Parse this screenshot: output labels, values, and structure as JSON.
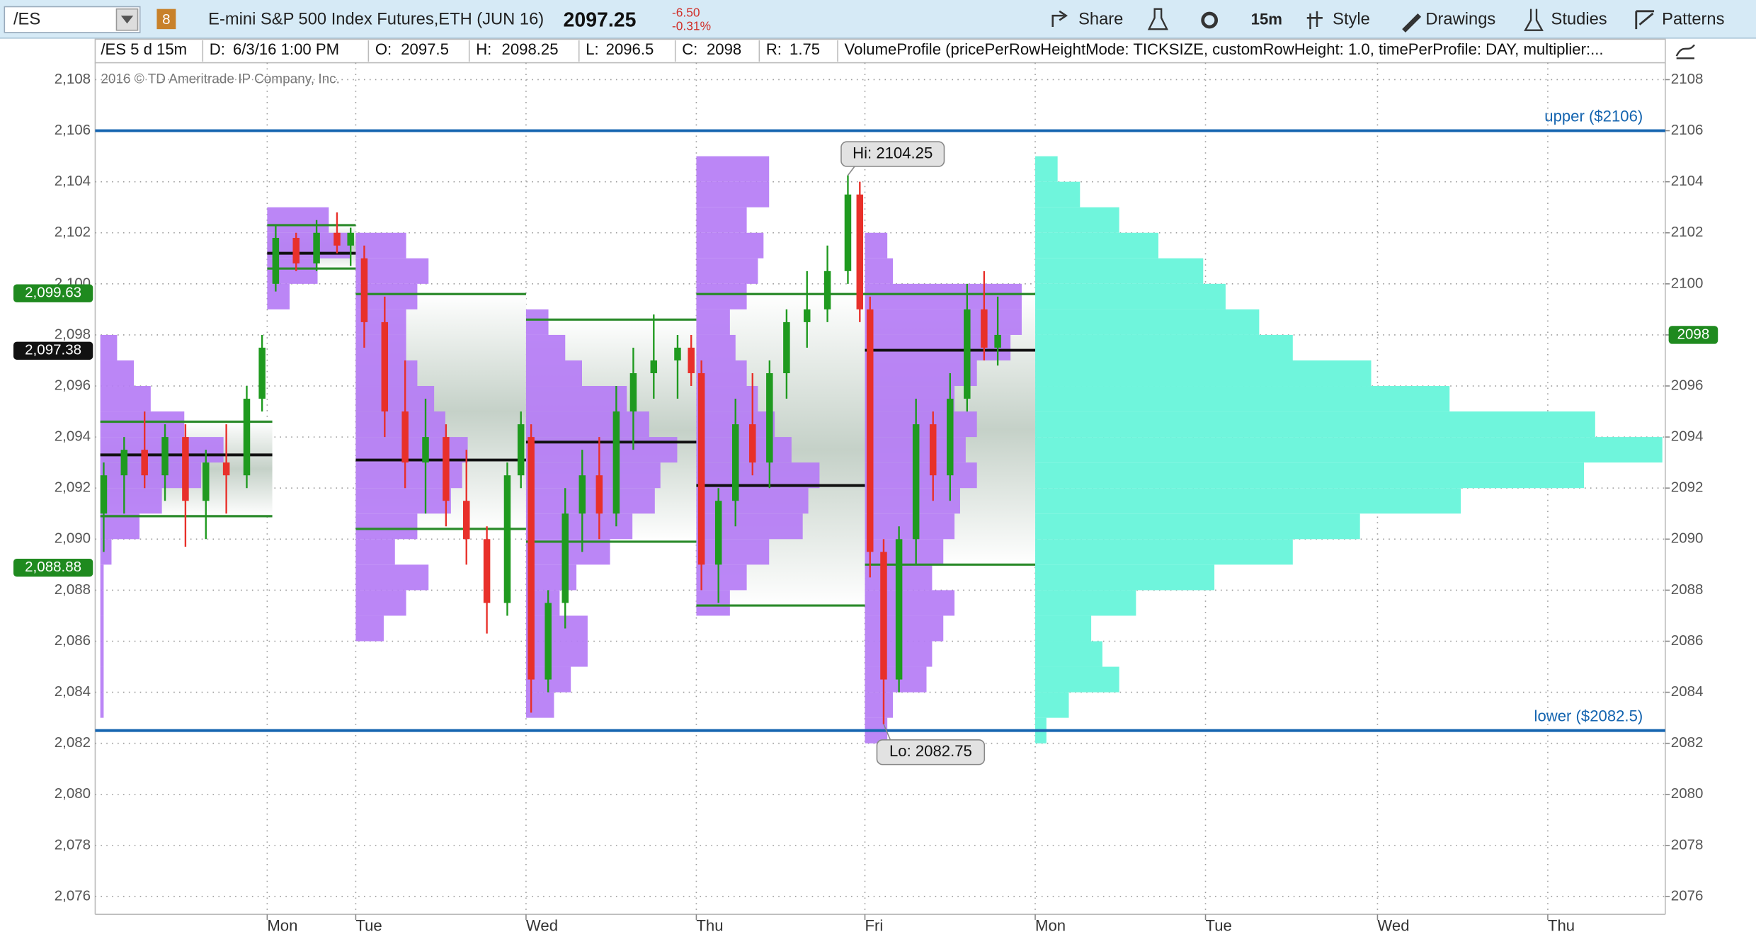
{
  "toolbar": {
    "symbol": "/ES",
    "link_group": "8",
    "description": "E-mini S&P 500 Index Futures,ETH (JUN 16)",
    "last": 2097.25,
    "change": "-6.50",
    "change_pct": "-0.31%",
    "buttons": [
      "Share",
      "15m",
      "Style",
      "Drawings",
      "Studies",
      "Patterns"
    ]
  },
  "header": {
    "chart_id": "/ES 5 d 15m",
    "fields": [
      {
        "label": "D:",
        "value": "6/3/16 1:00 PM"
      },
      {
        "label": "O:",
        "value": 2097.5
      },
      {
        "label": "H:",
        "value": 2098.25
      },
      {
        "label": "L:",
        "value": 2096.5
      },
      {
        "label": "C:",
        "value": 2098
      },
      {
        "label": "R:",
        "value": 1.75
      }
    ],
    "study": "VolumeProfile (pricePerRowHeightMode: TICKSIZE, customRowHeight: 1.0, timePerProfile: DAY, multiplier:..."
  },
  "copyright": "2016 © TD Ameritrade IP Company, Inc.",
  "chart_data": {
    "type": "candlestick",
    "xlim": [
      0,
      9.22
    ],
    "ylim": [
      2075.3,
      2109.54
    ],
    "xticks": [
      {
        "value": 1.01,
        "label": "Mon"
      },
      {
        "value": 1.53,
        "label": "Tue"
      },
      {
        "value": 2.53,
        "label": "Wed"
      },
      {
        "value": 3.53,
        "label": "Thu"
      },
      {
        "value": 4.52,
        "label": "Fri"
      },
      {
        "value": 5.52,
        "label": "Mon"
      },
      {
        "value": 6.52,
        "label": "Tue"
      },
      {
        "value": 7.53,
        "label": "Wed"
      },
      {
        "value": 8.53,
        "label": "Thu"
      }
    ],
    "yticks": [
      {
        "value": 2076,
        "label": "2,076"
      },
      {
        "value": 2078,
        "label": "2,078"
      },
      {
        "value": 2080,
        "label": "2,080"
      },
      {
        "value": 2082,
        "label": "2,082"
      },
      {
        "value": 2084,
        "label": "2,084"
      },
      {
        "value": 2086,
        "label": "2,086"
      },
      {
        "value": 2088,
        "label": "2,088"
      },
      {
        "value": 2090,
        "label": "2,090"
      },
      {
        "value": 2092,
        "label": "2,092"
      },
      {
        "value": 2094,
        "label": "2,094"
      },
      {
        "value": 2096,
        "label": "2,096"
      },
      {
        "value": 2098,
        "label": "2,098"
      },
      {
        "value": 2100,
        "label": "2,100"
      },
      {
        "value": 2102,
        "label": "2,102"
      },
      {
        "value": 2104,
        "label": "2,104"
      },
      {
        "value": 2106,
        "label": "2,106"
      },
      {
        "value": 2108,
        "label": "2,108"
      }
    ],
    "y2ticks": [
      2076,
      2078,
      2080,
      2082,
      2084,
      2086,
      2088,
      2090,
      2092,
      2094,
      2096,
      2098,
      2100,
      2102,
      2104,
      2106,
      2108
    ],
    "grid": true,
    "up_color": "#1f9a1f",
    "down_color": "#e8302a",
    "candles": [
      {
        "x": 0.05,
        "open": 2091,
        "high": 2093,
        "low": 2089.5,
        "close": 2092.5
      },
      {
        "x": 0.17,
        "open": 2092.5,
        "high": 2094,
        "low": 2091,
        "close": 2093.5
      },
      {
        "x": 0.29,
        "open": 2093.5,
        "high": 2095,
        "low": 2092,
        "close": 2092.5
      },
      {
        "x": 0.41,
        "open": 2092.5,
        "high": 2094.5,
        "low": 2091.5,
        "close": 2094
      },
      {
        "x": 0.53,
        "open": 2094,
        "high": 2094.5,
        "low": 2089.7,
        "close": 2091.5
      },
      {
        "x": 0.65,
        "open": 2091.5,
        "high": 2093.5,
        "low": 2090,
        "close": 2093
      },
      {
        "x": 0.77,
        "open": 2093,
        "high": 2094.5,
        "low": 2091,
        "close": 2092.5
      },
      {
        "x": 0.89,
        "open": 2092.5,
        "high": 2096,
        "low": 2092,
        "close": 2095.5
      },
      {
        "x": 0.98,
        "open": 2095.5,
        "high": 2098,
        "low": 2095,
        "close": 2097.5
      },
      {
        "x": 1.06,
        "open": 2100,
        "high": 2102.3,
        "low": 2099.7,
        "close": 2101.8
      },
      {
        "x": 1.18,
        "open": 2101.8,
        "high": 2102,
        "low": 2100.5,
        "close": 2100.8
      },
      {
        "x": 1.3,
        "open": 2100.8,
        "high": 2102.5,
        "low": 2100.5,
        "close": 2102
      },
      {
        "x": 1.42,
        "open": 2102,
        "high": 2102.8,
        "low": 2101.2,
        "close": 2101.5
      },
      {
        "x": 1.5,
        "open": 2101.5,
        "high": 2102.2,
        "low": 2100.7,
        "close": 2102
      },
      {
        "x": 1.58,
        "open": 2101,
        "high": 2101.5,
        "low": 2097.5,
        "close": 2098.5
      },
      {
        "x": 1.7,
        "open": 2098.5,
        "high": 2099.5,
        "low": 2094,
        "close": 2095
      },
      {
        "x": 1.82,
        "open": 2095,
        "high": 2097,
        "low": 2092,
        "close": 2093
      },
      {
        "x": 1.94,
        "open": 2093,
        "high": 2095.5,
        "low": 2091,
        "close": 2094
      },
      {
        "x": 2.06,
        "open": 2094,
        "high": 2094.5,
        "low": 2090.5,
        "close": 2091.5
      },
      {
        "x": 2.18,
        "open": 2091.5,
        "high": 2093.5,
        "low": 2089,
        "close": 2090
      },
      {
        "x": 2.3,
        "open": 2090,
        "high": 2090.5,
        "low": 2086.3,
        "close": 2087.5
      },
      {
        "x": 2.42,
        "open": 2087.5,
        "high": 2093,
        "low": 2087,
        "close": 2092.5
      },
      {
        "x": 2.5,
        "open": 2092.5,
        "high": 2095,
        "low": 2092,
        "close": 2094.5
      },
      {
        "x": 2.56,
        "open": 2094,
        "high": 2094.5,
        "low": 2083.2,
        "close": 2084.5
      },
      {
        "x": 2.66,
        "open": 2084.5,
        "high": 2088,
        "low": 2084,
        "close": 2087.5
      },
      {
        "x": 2.76,
        "open": 2087.5,
        "high": 2092,
        "low": 2086.5,
        "close": 2091
      },
      {
        "x": 2.86,
        "open": 2091,
        "high": 2093.5,
        "low": 2089.5,
        "close": 2092.5
      },
      {
        "x": 2.96,
        "open": 2092.5,
        "high": 2094,
        "low": 2090,
        "close": 2091
      },
      {
        "x": 3.06,
        "open": 2091,
        "high": 2096,
        "low": 2090.5,
        "close": 2095
      },
      {
        "x": 3.16,
        "open": 2095,
        "high": 2097.5,
        "low": 2093.5,
        "close": 2096.5
      },
      {
        "x": 3.28,
        "open": 2096.5,
        "high": 2098.8,
        "low": 2095.5,
        "close": 2097
      },
      {
        "x": 3.42,
        "open": 2097,
        "high": 2098,
        "low": 2095.5,
        "close": 2097.5
      },
      {
        "x": 3.5,
        "open": 2097.5,
        "high": 2098,
        "low": 2096,
        "close": 2096.5
      },
      {
        "x": 3.56,
        "open": 2096.5,
        "high": 2097,
        "low": 2088,
        "close": 2089
      },
      {
        "x": 3.66,
        "open": 2089,
        "high": 2092,
        "low": 2087.5,
        "close": 2091.5
      },
      {
        "x": 3.76,
        "open": 2091.5,
        "high": 2095.5,
        "low": 2090.5,
        "close": 2094.5
      },
      {
        "x": 3.86,
        "open": 2094.5,
        "high": 2096.5,
        "low": 2092.5,
        "close": 2093
      },
      {
        "x": 3.96,
        "open": 2093,
        "high": 2097,
        "low": 2092,
        "close": 2096.5
      },
      {
        "x": 4.06,
        "open": 2096.5,
        "high": 2099,
        "low": 2095.5,
        "close": 2098.5
      },
      {
        "x": 4.18,
        "open": 2098.5,
        "high": 2100.5,
        "low": 2097.5,
        "close": 2099
      },
      {
        "x": 4.3,
        "open": 2099,
        "high": 2101.5,
        "low": 2098.5,
        "close": 2100.5
      },
      {
        "x": 4.42,
        "open": 2100.5,
        "high": 2104.25,
        "low": 2100,
        "close": 2103.5
      },
      {
        "x": 4.49,
        "open": 2103.5,
        "high": 2104,
        "low": 2098.5,
        "close": 2099
      },
      {
        "x": 4.55,
        "open": 2099,
        "high": 2099.5,
        "low": 2088.5,
        "close": 2089.5
      },
      {
        "x": 4.63,
        "open": 2089.5,
        "high": 2090,
        "low": 2082.75,
        "close": 2084.5
      },
      {
        "x": 4.72,
        "open": 2084.5,
        "high": 2090.5,
        "low": 2084,
        "close": 2090
      },
      {
        "x": 4.82,
        "open": 2090,
        "high": 2095.5,
        "low": 2089,
        "close": 2094.5
      },
      {
        "x": 4.92,
        "open": 2094.5,
        "high": 2095,
        "low": 2091.5,
        "close": 2092.5
      },
      {
        "x": 5.02,
        "open": 2092.5,
        "high": 2096.5,
        "low": 2091.5,
        "close": 2095.5
      },
      {
        "x": 5.12,
        "open": 2095.5,
        "high": 2100,
        "low": 2095,
        "close": 2099
      },
      {
        "x": 5.22,
        "open": 2099,
        "high": 2100.5,
        "low": 2097,
        "close": 2097.5
      },
      {
        "x": 5.3,
        "open": 2097.5,
        "high": 2099.5,
        "low": 2096.8,
        "close": 2098
      }
    ],
    "profile_color": "#b57cf5",
    "value_area_color": "#2a8a2a",
    "poc_color": "#111111",
    "profiles": [
      {
        "start": 0.03,
        "end": 1.04,
        "vah": 2094.6,
        "poc": 2093.3,
        "val": 2090.9,
        "prices": [
          2083,
          2084,
          2085,
          2086,
          2087,
          2088,
          2089,
          2090,
          2091,
          2092,
          2093,
          2094,
          2095,
          2096,
          2097
        ],
        "volumes": [
          3,
          3,
          3,
          3,
          3,
          3,
          10,
          35,
          55,
          90,
          110,
          75,
          45,
          30,
          15
        ]
      },
      {
        "start": 1.01,
        "end": 1.53,
        "vah": 2102.3,
        "poc": 2101.2,
        "val": 2100.6,
        "prices": [
          2099,
          2100,
          2101,
          2102
        ],
        "volumes": [
          20,
          45,
          75,
          55
        ]
      },
      {
        "start": 1.53,
        "end": 2.53,
        "vah": 2099.6,
        "poc": 2093.1,
        "val": 2090.4,
        "prices": [
          2086,
          2087,
          2088,
          2089,
          2090,
          2091,
          2092,
          2093,
          2094,
          2095,
          2096,
          2097,
          2098,
          2099,
          2100,
          2101
        ],
        "volumes": [
          25,
          45,
          65,
          35,
          55,
          85,
          95,
          100,
          80,
          70,
          55,
          45,
          45,
          55,
          65,
          45
        ]
      },
      {
        "start": 2.53,
        "end": 3.53,
        "vah": 2098.6,
        "poc": 2093.8,
        "val": 2089.9,
        "prices": [
          2083,
          2084,
          2085,
          2086,
          2087,
          2088,
          2089,
          2090,
          2091,
          2092,
          2093,
          2094,
          2095,
          2096,
          2097,
          2098
        ],
        "volumes": [
          25,
          40,
          55,
          55,
          30,
          45,
          75,
          95,
          115,
          120,
          135,
          110,
          90,
          50,
          35,
          20
        ]
      },
      {
        "start": 3.53,
        "end": 4.52,
        "vah": 2099.6,
        "poc": 2092.1,
        "val": 2087.4,
        "prices": [
          2087,
          2088,
          2089,
          2090,
          2091,
          2092,
          2093,
          2094,
          2095,
          2096,
          2097,
          2098,
          2099,
          2100,
          2101,
          2102,
          2103,
          2104
        ],
        "volumes": [
          30,
          45,
          65,
          95,
          100,
          110,
          85,
          70,
          55,
          45,
          35,
          30,
          45,
          55,
          60,
          45,
          65,
          65
        ]
      },
      {
        "start": 4.52,
        "end": 5.52,
        "vah": 2099.6,
        "poc": 2097.4,
        "val": 2089,
        "prices": [
          2082,
          2083,
          2084,
          2085,
          2086,
          2087,
          2088,
          2089,
          2090,
          2091,
          2092,
          2093,
          2094,
          2095,
          2096,
          2097,
          2098,
          2099,
          2100,
          2101
        ],
        "volumes": [
          20,
          25,
          55,
          60,
          70,
          80,
          60,
          70,
          80,
          85,
          100,
          90,
          100,
          80,
          100,
          130,
          140,
          140,
          25,
          20
        ]
      }
    ],
    "composite_profile": {
      "start": 5.52,
      "color": "#6ff5dc",
      "prices": [
        2082,
        2083,
        2084,
        2085,
        2086,
        2087,
        2088,
        2089,
        2090,
        2091,
        2092,
        2093,
        2094,
        2095,
        2096,
        2097,
        2098,
        2099,
        2100,
        2101,
        2102,
        2103,
        2104
      ],
      "volumes": [
        10,
        30,
        75,
        60,
        50,
        90,
        160,
        230,
        290,
        380,
        490,
        560,
        500,
        370,
        300,
        230,
        200,
        170,
        150,
        110,
        75,
        40,
        20
      ]
    },
    "levels_color": "#1565b0",
    "levels": [
      {
        "value": 2106,
        "label": "upper ($2106)"
      },
      {
        "value": 2082.5,
        "label": "lower ($2082.5)"
      }
    ],
    "price_markers": [
      {
        "value": 2099.63,
        "label": "2,099.63",
        "color": "#1f8a1f"
      },
      {
        "value": 2097.38,
        "label": "2,097.38",
        "color": "#111111"
      },
      {
        "value": 2088.88,
        "label": "2,088.88",
        "color": "#1f8a1f"
      }
    ],
    "right_marker": {
      "value": 2098,
      "color": "#1f8a1f"
    },
    "annotations": [
      {
        "label": "Hi: 2104.25",
        "x": 4.42,
        "value": 2104.25
      },
      {
        "label": "Lo: 2082.75",
        "x": 4.63,
        "value": 2082.75
      }
    ]
  }
}
